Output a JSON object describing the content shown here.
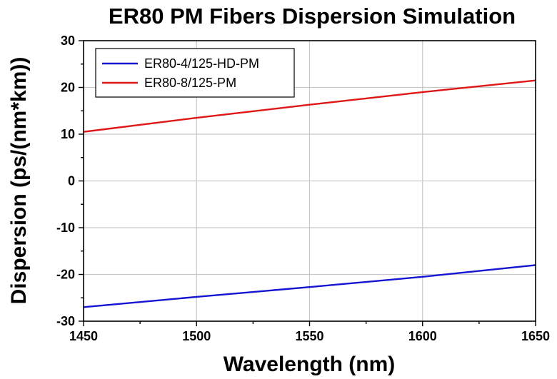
{
  "chart_data": {
    "type": "line",
    "title": "ER80 PM Fibers Dispersion Simulation",
    "xlabel": "Wavelength (nm)",
    "ylabel": "Dispersion (ps/(nm*km))",
    "xlim": [
      1450,
      1650
    ],
    "ylim": [
      -30,
      30
    ],
    "x_ticks": [
      1450,
      1500,
      1550,
      1600,
      1650
    ],
    "y_ticks": [
      -30,
      -20,
      -10,
      0,
      10,
      20,
      30
    ],
    "grid": true,
    "legend_position": "top-left",
    "series": [
      {
        "name": "ER80-4/125-HD-PM",
        "color": "#1414d2",
        "x": [
          1450,
          1500,
          1550,
          1600,
          1650
        ],
        "y": [
          -27.0,
          -24.8,
          -22.7,
          -20.5,
          -18.0
        ]
      },
      {
        "name": "ER80-8/125-PM",
        "color": "#e01616",
        "x": [
          1450,
          1500,
          1550,
          1600,
          1650
        ],
        "y": [
          10.5,
          13.5,
          16.3,
          19.0,
          21.5
        ]
      }
    ]
  }
}
